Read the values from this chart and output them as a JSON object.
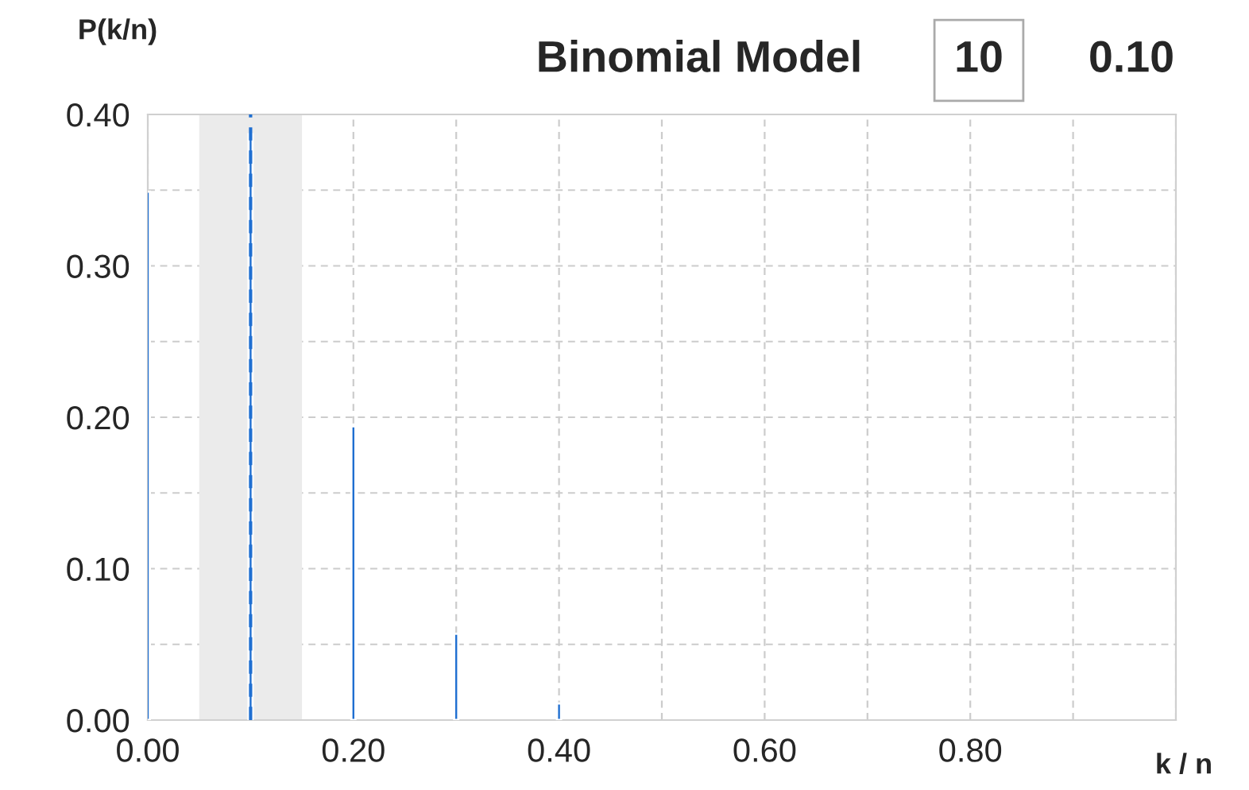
{
  "chart_data": {
    "type": "bar",
    "title": "Binomial Model",
    "annotations": [
      "10",
      "0.10"
    ],
    "xlabel": "k / n",
    "ylabel": "P(k/n)",
    "x": [
      0.0,
      0.1,
      0.2,
      0.3,
      0.4
    ],
    "values": [
      0.349,
      0.387,
      0.194,
      0.057,
      0.011
    ],
    "color": "#1f6fd1",
    "xlim": [
      0,
      1.0
    ],
    "xticks": [
      {
        "value": 0,
        "label": "0.00"
      },
      {
        "value": 0.1,
        "label": null
      },
      {
        "value": 0.2,
        "label": "0.20"
      },
      {
        "value": 0.3,
        "label": null
      },
      {
        "value": 0.4,
        "label": "0.40"
      },
      {
        "value": 0.5,
        "label": null
      },
      {
        "value": 0.6,
        "label": "0.60"
      },
      {
        "value": 0.7,
        "label": null
      },
      {
        "value": 0.8,
        "label": "0.80"
      },
      {
        "value": 0.9,
        "label": null
      },
      {
        "value": 1.0,
        "label": null
      }
    ],
    "ylim": [
      0,
      0.4
    ],
    "yticks": [
      {
        "value": 0,
        "label": "0.00"
      },
      {
        "value": 0.05,
        "label": null
      },
      {
        "value": 0.1,
        "label": "0.10"
      },
      {
        "value": 0.15,
        "label": null
      },
      {
        "value": 0.2,
        "label": "0.20"
      },
      {
        "value": 0.25,
        "label": null
      },
      {
        "value": 0.3,
        "label": "0.30"
      },
      {
        "value": 0.35,
        "label": null
      },
      {
        "value": 0.4,
        "label": "0.40"
      }
    ],
    "grid": true,
    "ref_lines": [
      {
        "axis": "x",
        "value": 0.1,
        "color": "#1f6fd1",
        "line_style": "dashed"
      }
    ],
    "bands": [
      {
        "axis": "x",
        "from": 0.05,
        "to": 0.15,
        "color": "#ebebeb"
      }
    ]
  }
}
